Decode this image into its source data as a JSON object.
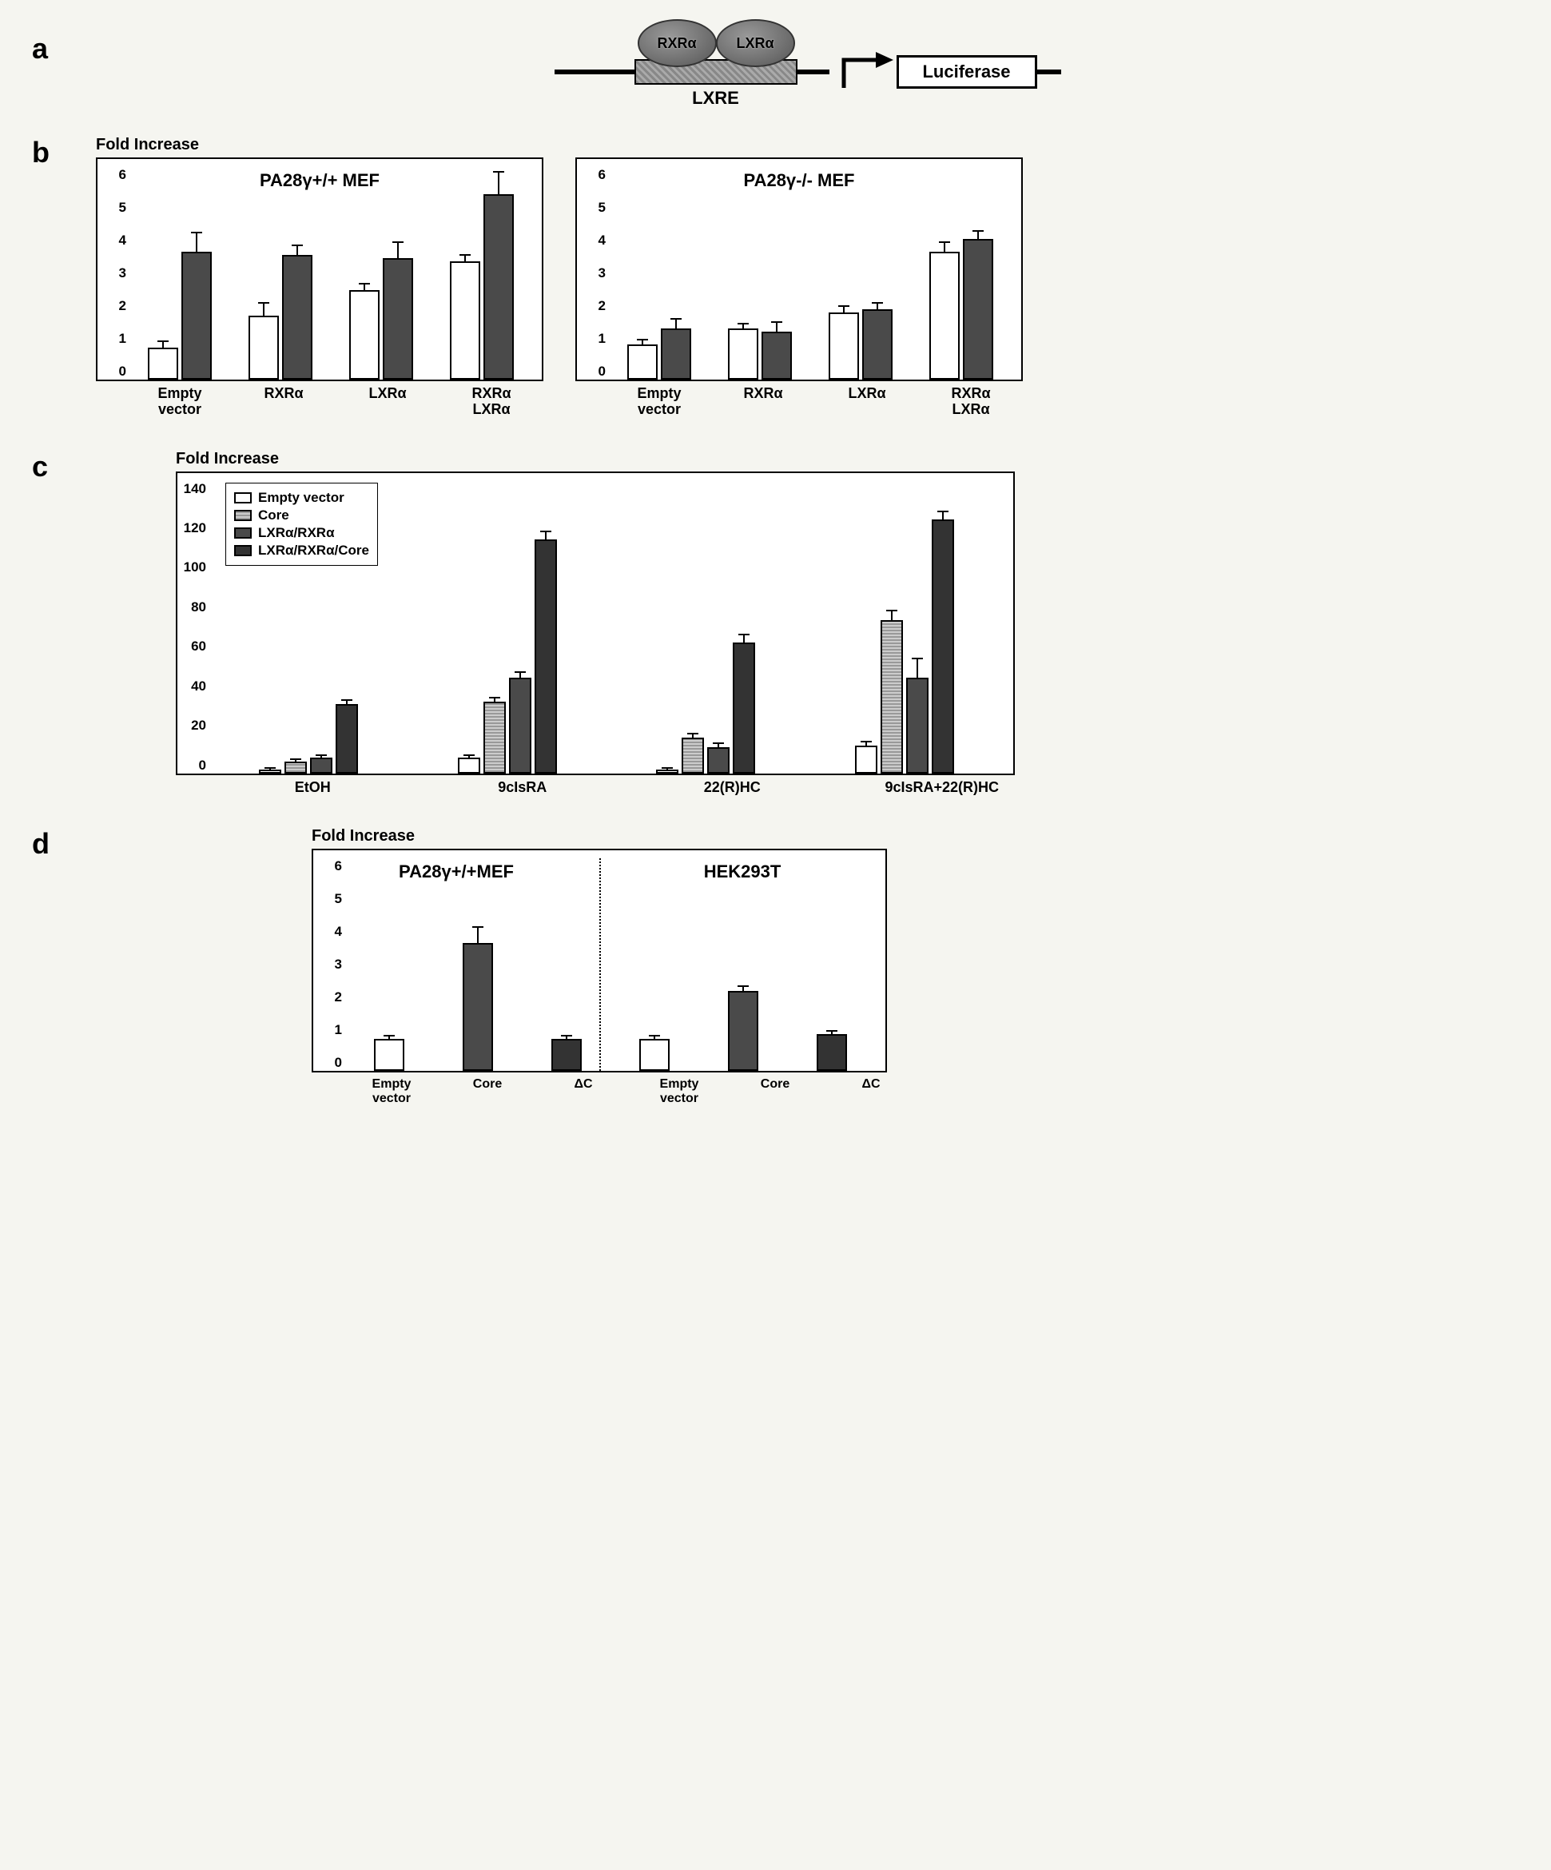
{
  "panelA": {
    "label": "a",
    "receptors": {
      "left": "RXRα",
      "right": "LXRα"
    },
    "element_label": "LXRE",
    "reporter": "Luciferase"
  },
  "panelB": {
    "label": "b",
    "title": "Fold Increase",
    "ymax": 6.5,
    "yticks": [
      "6",
      "5",
      "4",
      "3",
      "2",
      "1",
      "0"
    ],
    "charts": [
      {
        "inner_title": "PA28γ+/+ MEF",
        "groups": [
          {
            "x": "Empty\nvector",
            "bars": [
              {
                "fill": "white",
                "v": 1.0,
                "err": 0.2
              },
              {
                "fill": "dark",
                "v": 4.0,
                "err": 0.6
              }
            ]
          },
          {
            "x": "RXRα",
            "bars": [
              {
                "fill": "white",
                "v": 2.0,
                "err": 0.4
              },
              {
                "fill": "dark",
                "v": 3.9,
                "err": 0.3
              }
            ]
          },
          {
            "x": "LXRα",
            "bars": [
              {
                "fill": "white",
                "v": 2.8,
                "err": 0.2
              },
              {
                "fill": "dark",
                "v": 3.8,
                "err": 0.5
              }
            ]
          },
          {
            "x": "RXRα\nLXRα",
            "bars": [
              {
                "fill": "white",
                "v": 3.7,
                "err": 0.2
              },
              {
                "fill": "dark",
                "v": 5.8,
                "err": 0.7
              }
            ]
          }
        ]
      },
      {
        "inner_title": "PA28γ-/- MEF",
        "groups": [
          {
            "x": "Empty\nvector",
            "bars": [
              {
                "fill": "white",
                "v": 1.1,
                "err": 0.15
              },
              {
                "fill": "dark",
                "v": 1.6,
                "err": 0.3
              }
            ]
          },
          {
            "x": "RXRα",
            "bars": [
              {
                "fill": "white",
                "v": 1.6,
                "err": 0.15
              },
              {
                "fill": "dark",
                "v": 1.5,
                "err": 0.3
              }
            ]
          },
          {
            "x": "LXRα",
            "bars": [
              {
                "fill": "white",
                "v": 2.1,
                "err": 0.2
              },
              {
                "fill": "dark",
                "v": 2.2,
                "err": 0.2
              }
            ]
          },
          {
            "x": "RXRα\nLXRα",
            "bars": [
              {
                "fill": "white",
                "v": 4.0,
                "err": 0.3
              },
              {
                "fill": "dark",
                "v": 4.4,
                "err": 0.25
              }
            ]
          }
        ]
      }
    ]
  },
  "panelC": {
    "label": "c",
    "title": "Fold Increase",
    "ymax": 145,
    "yticks": [
      "140",
      "120",
      "100",
      "80",
      "60",
      "40",
      "20",
      "0"
    ],
    "legend": [
      {
        "fill": "white",
        "label": "Empty vector"
      },
      {
        "fill": "hatch",
        "label": "Core"
      },
      {
        "fill": "dark",
        "label": "LXRα/RXRα"
      },
      {
        "fill": "darker",
        "label": "LXRα/RXRα/Core"
      }
    ],
    "groups": [
      {
        "x": "EtOH",
        "bars": [
          {
            "fill": "white",
            "v": 2,
            "err": 0.5
          },
          {
            "fill": "hatch",
            "v": 6,
            "err": 1
          },
          {
            "fill": "dark",
            "v": 8,
            "err": 1
          },
          {
            "fill": "darker",
            "v": 35,
            "err": 2
          }
        ]
      },
      {
        "x": "9cIsRA",
        "bars": [
          {
            "fill": "white",
            "v": 8,
            "err": 1
          },
          {
            "fill": "hatch",
            "v": 36,
            "err": 2
          },
          {
            "fill": "dark",
            "v": 48,
            "err": 3
          },
          {
            "fill": "darker",
            "v": 118,
            "err": 4
          }
        ]
      },
      {
        "x": "22(R)HC",
        "bars": [
          {
            "fill": "white",
            "v": 2,
            "err": 0.5
          },
          {
            "fill": "hatch",
            "v": 18,
            "err": 2
          },
          {
            "fill": "dark",
            "v": 13,
            "err": 2
          },
          {
            "fill": "darker",
            "v": 66,
            "err": 4
          }
        ]
      },
      {
        "x": "9cIsRA+22(R)HC",
        "bars": [
          {
            "fill": "white",
            "v": 14,
            "err": 2
          },
          {
            "fill": "hatch",
            "v": 77,
            "err": 5
          },
          {
            "fill": "dark",
            "v": 48,
            "err": 10
          },
          {
            "fill": "darker",
            "v": 128,
            "err": 4
          }
        ]
      }
    ]
  },
  "panelD": {
    "label": "d",
    "title": "Fold Increase",
    "ymax": 6.5,
    "yticks": [
      "6",
      "5",
      "4",
      "3",
      "2",
      "1",
      "0"
    ],
    "sections": [
      {
        "title": "PA28γ+/+MEF",
        "groups": [
          {
            "x": "Empty\nvector",
            "bars": [
              {
                "fill": "white",
                "v": 1.0,
                "err": 0.1
              }
            ]
          },
          {
            "x": "Core",
            "bars": [
              {
                "fill": "dark",
                "v": 4.0,
                "err": 0.5
              }
            ]
          },
          {
            "x": "ΔC",
            "bars": [
              {
                "fill": "darker",
                "v": 1.0,
                "err": 0.1
              }
            ]
          }
        ]
      },
      {
        "title": "HEK293T",
        "groups": [
          {
            "x": "Empty\nvector",
            "bars": [
              {
                "fill": "white",
                "v": 1.0,
                "err": 0.1
              }
            ]
          },
          {
            "x": "Core",
            "bars": [
              {
                "fill": "dark",
                "v": 2.5,
                "err": 0.15
              }
            ]
          },
          {
            "x": "ΔC",
            "bars": [
              {
                "fill": "darker",
                "v": 1.15,
                "err": 0.1
              }
            ]
          }
        ]
      }
    ]
  },
  "colors": {
    "white": "#ffffff",
    "hatch": "#999999",
    "dark": "#4a4a4a",
    "darker": "#333333",
    "border": "#000000",
    "background": "#f5f5f0"
  }
}
